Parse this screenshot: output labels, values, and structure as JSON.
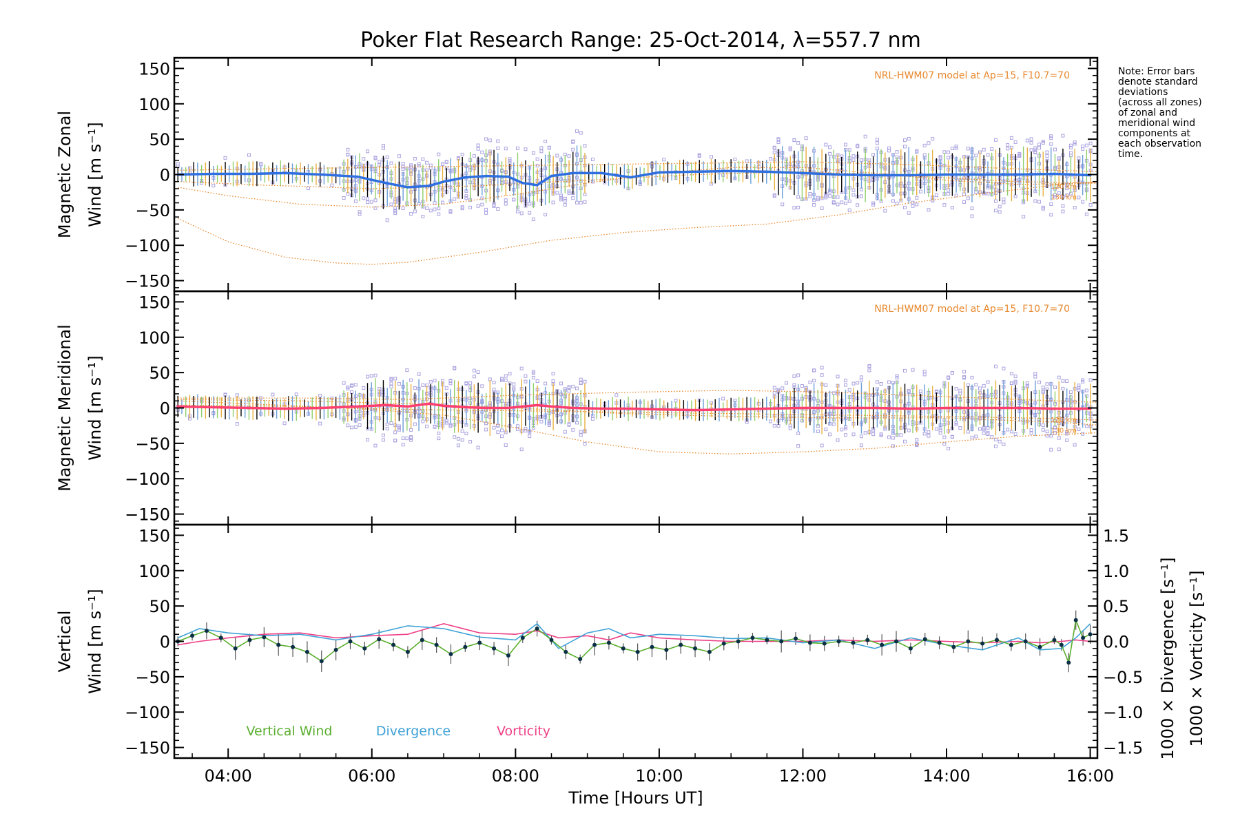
{
  "colors": {
    "zonal": "#2f6fe0",
    "meridional": "#ff3f6f",
    "vertical": "#5aae2e",
    "divergence": "#3fa2d6",
    "vorticity": "#ee3f86",
    "model": "#e8882e",
    "scatter": "#aaa3e0",
    "errorbar": "#000000",
    "dot": "#0b2f44"
  },
  "text": {
    "note_lines": [
      "Note: Error bars",
      "denote standard",
      "deviations",
      "(across all zones)",
      "of zonal and",
      "meridional wind",
      "components at",
      "each observation",
      "time."
    ],
    "model_label": "NRL-HWM07 model at Ap=15, F10.7=70",
    "alt_120": "120 km",
    "alt_130": "130 km"
  },
  "chart_data": [
    {
      "type": "line",
      "title": "Poker Flat Research Range: 25-Oct-2014, λ=557.7 nm",
      "ylabel_lines": [
        "Magnetic Zonal",
        "Wind [m s⁻¹]"
      ],
      "ylim": [
        -165,
        165
      ],
      "xlim": [
        3.25,
        16.1
      ],
      "yticks": [
        "150",
        "100",
        "50",
        "0",
        "−50",
        "−100",
        "−150"
      ],
      "ytick_values": [
        150,
        100,
        50,
        0,
        -50,
        -100,
        -150
      ],
      "series": [
        {
          "name": "Magnetic Zonal Wind",
          "x": [
            3.3,
            3.8,
            4.3,
            4.8,
            5.3,
            5.8,
            6.2,
            6.5,
            6.8,
            7.0,
            7.3,
            7.6,
            7.9,
            8.1,
            8.3,
            8.5,
            8.8,
            9.2,
            9.6,
            10.0,
            10.5,
            11.0,
            11.5,
            12.0,
            12.5,
            13.0,
            13.5,
            14.0,
            14.5,
            15.0,
            15.5,
            16.0
          ],
          "y": [
            0,
            1,
            1,
            2,
            0,
            -3,
            -12,
            -18,
            -16,
            -10,
            -4,
            -2,
            -3,
            -12,
            -15,
            -2,
            2,
            2,
            -4,
            3,
            4,
            5,
            4,
            2,
            0,
            -1,
            -1,
            0,
            0,
            0,
            1,
            -1
          ]
        }
      ],
      "model_curves": [
        {
          "x": [
            3.3,
            4.0,
            4.8,
            5.5,
            6.0,
            6.5,
            7.5,
            8.5,
            9.5,
            10.5,
            11.5,
            12.5,
            13.5,
            14.5,
            15.5,
            16.1
          ],
          "y": [
            -62,
            -95,
            -117,
            -125,
            -127,
            -124,
            -110,
            -93,
            -82,
            -75,
            -70,
            -57,
            -40,
            -27,
            -15,
            -10
          ]
        },
        {
          "x": [
            3.3,
            4.0,
            5.0,
            6.0,
            7.0,
            8.0,
            9.0,
            10.0,
            11.0,
            12.0,
            13.0,
            14.0,
            15.0,
            16.1
          ],
          "y": [
            -18,
            -30,
            -42,
            -46,
            -42,
            -28,
            -12,
            2,
            10,
            10,
            2,
            -8,
            -14,
            -12
          ]
        },
        {
          "x": [
            3.3,
            4.5,
            6.0,
            7.5,
            9.0,
            10.5,
            12.0,
            13.5,
            15.0,
            16.1
          ],
          "y": [
            -10,
            -15,
            -20,
            -16,
            -8,
            0,
            4,
            -2,
            -10,
            -12
          ]
        },
        {
          "x": [
            3.3,
            4.5,
            6.0,
            7.5,
            9.0,
            10.5,
            12.0,
            13.5,
            15.0,
            16.1
          ],
          "y": [
            6,
            8,
            10,
            12,
            14,
            16,
            18,
            14,
            8,
            4
          ]
        }
      ],
      "model_label_shown": true,
      "alt_labels_shown": true
    },
    {
      "type": "line",
      "ylabel_lines": [
        "Magnetic Meridional",
        "Wind [m s⁻¹]"
      ],
      "ylim": [
        -165,
        165
      ],
      "xlim": [
        3.25,
        16.1
      ],
      "yticks": [
        "150",
        "100",
        "50",
        "0",
        "−50",
        "−100",
        "−150"
      ],
      "ytick_values": [
        150,
        100,
        50,
        0,
        -50,
        -100,
        -150
      ],
      "series": [
        {
          "name": "Magnetic Meridional Wind",
          "x": [
            3.3,
            3.8,
            4.3,
            4.8,
            5.3,
            5.8,
            6.2,
            6.5,
            6.8,
            7.0,
            7.3,
            7.6,
            7.9,
            8.1,
            8.3,
            8.5,
            8.8,
            9.2,
            9.6,
            10.0,
            10.5,
            11.0,
            11.5,
            12.0,
            12.5,
            13.0,
            13.5,
            14.0,
            14.5,
            15.0,
            15.5,
            16.0
          ],
          "y": [
            2,
            1,
            0,
            -1,
            0,
            2,
            4,
            2,
            6,
            3,
            1,
            0,
            0,
            2,
            4,
            2,
            0,
            -1,
            -1,
            -2,
            -3,
            -2,
            -1,
            0,
            0,
            0,
            -1,
            0,
            0,
            0,
            -1,
            -1
          ]
        }
      ],
      "model_curves": [
        {
          "x": [
            3.3,
            4.5,
            6.0,
            7.0,
            8.0,
            9.0,
            10.0,
            11.0,
            12.0,
            13.0,
            14.0,
            15.0,
            16.1
          ],
          "y": [
            10,
            5,
            -2,
            -10,
            -28,
            -48,
            -62,
            -65,
            -62,
            -57,
            -48,
            -40,
            -35
          ]
        },
        {
          "x": [
            3.3,
            5.0,
            6.5,
            8.0,
            9.5,
            11.0,
            12.5,
            14.0,
            15.5,
            16.1
          ],
          "y": [
            12,
            10,
            6,
            0,
            -8,
            -12,
            -14,
            -14,
            -20,
            -24
          ]
        },
        {
          "x": [
            3.3,
            5.0,
            6.5,
            8.0,
            9.5,
            11.0,
            12.5,
            14.0,
            15.5,
            16.1
          ],
          "y": [
            4,
            2,
            -2,
            -4,
            -6,
            -8,
            -10,
            -12,
            -15,
            -17
          ]
        },
        {
          "x": [
            3.3,
            5.0,
            6.5,
            8.0,
            9.5,
            11.0,
            12.5,
            14.0,
            15.5,
            16.1
          ],
          "y": [
            14,
            14,
            12,
            18,
            22,
            25,
            22,
            16,
            10,
            8
          ]
        }
      ],
      "model_label_shown": true,
      "alt_labels_shown": true
    },
    {
      "type": "line",
      "ylabel_lines": [
        "Vertical",
        "Wind [m s⁻¹]"
      ],
      "ylim": [
        -165,
        165
      ],
      "xlim": [
        3.25,
        16.1
      ],
      "yticks": [
        "150",
        "100",
        "50",
        "0",
        "−50",
        "−100",
        "−150"
      ],
      "ytick_values": [
        150,
        100,
        50,
        0,
        -50,
        -100,
        -150
      ],
      "y2label_lines": [
        "1000 × Vorticity [s⁻¹]",
        "1000 × Divergence [s⁻¹]"
      ],
      "y2lim": [
        -1.65,
        1.65
      ],
      "y2ticks": [
        "1.5",
        "1.0",
        "0.5",
        "0.0",
        "−0.5",
        "−1.0",
        "−1.5"
      ],
      "y2tick_values": [
        1.5,
        1.0,
        0.5,
        0.0,
        -0.5,
        -1.0,
        -1.5
      ],
      "xticks": [
        "04:00",
        "06:00",
        "08:00",
        "10:00",
        "12:00",
        "14:00",
        "16:00"
      ],
      "xtick_values": [
        4,
        6,
        8,
        10,
        12,
        14,
        16
      ],
      "xlabel": "Time [Hours UT]",
      "legend": [
        "Vertical Wind",
        "Divergence",
        "Vorticity"
      ],
      "series": [
        {
          "name": "Vertical Wind",
          "x": [
            3.3,
            3.5,
            3.7,
            3.9,
            4.1,
            4.3,
            4.5,
            4.7,
            4.9,
            5.1,
            5.3,
            5.5,
            5.7,
            5.9,
            6.1,
            6.3,
            6.5,
            6.7,
            6.9,
            7.1,
            7.3,
            7.5,
            7.7,
            7.9,
            8.1,
            8.3,
            8.5,
            8.7,
            8.9,
            9.1,
            9.3,
            9.5,
            9.7,
            9.9,
            10.1,
            10.3,
            10.5,
            10.7,
            10.9,
            11.1,
            11.3,
            11.5,
            11.7,
            11.9,
            12.1,
            12.3,
            12.5,
            12.7,
            12.9,
            13.1,
            13.3,
            13.5,
            13.7,
            13.9,
            14.1,
            14.3,
            14.5,
            14.7,
            14.9,
            15.1,
            15.3,
            15.5,
            15.6,
            15.7,
            15.8,
            15.9,
            16.0
          ],
          "y": [
            0,
            8,
            15,
            5,
            -10,
            2,
            6,
            -5,
            -8,
            -15,
            -28,
            -12,
            0,
            -10,
            3,
            -5,
            -15,
            2,
            -5,
            -18,
            -8,
            -2,
            -10,
            -20,
            5,
            18,
            2,
            -15,
            -25,
            -5,
            -2,
            -10,
            -15,
            -8,
            -12,
            -5,
            -10,
            -15,
            -3,
            0,
            5,
            2,
            0,
            4,
            -2,
            -3,
            0,
            -2,
            2,
            -5,
            0,
            -10,
            3,
            -2,
            -8,
            0,
            -3,
            2,
            -5,
            0,
            -8,
            2,
            -5,
            -30,
            30,
            5,
            10
          ]
        },
        {
          "name": "Divergence",
          "x": [
            3.3,
            3.6,
            4.0,
            4.5,
            5.0,
            5.5,
            6.0,
            6.5,
            7.0,
            7.5,
            8.0,
            8.3,
            8.6,
            9.0,
            9.3,
            9.6,
            10.0,
            10.5,
            11.0,
            11.5,
            12.0,
            12.5,
            13.0,
            13.5,
            14.0,
            14.5,
            15.0,
            15.3,
            15.6,
            15.8,
            16.0
          ],
          "y": [
            0.05,
            0.18,
            0.12,
            0.08,
            0.1,
            0.02,
            0.1,
            0.22,
            0.18,
            0.06,
            0.02,
            0.25,
            -0.1,
            0.12,
            0.18,
            0.05,
            0.1,
            0.08,
            0.04,
            0.05,
            -0.02,
            0.02,
            -0.1,
            0.05,
            -0.05,
            -0.12,
            0.05,
            -0.12,
            -0.1,
            0.05,
            0.25
          ]
        },
        {
          "name": "Vorticity",
          "x": [
            3.3,
            3.6,
            4.0,
            4.5,
            5.0,
            5.5,
            6.0,
            6.5,
            7.0,
            7.5,
            8.0,
            8.3,
            8.6,
            9.0,
            9.3,
            9.6,
            10.0,
            10.5,
            11.0,
            11.5,
            12.0,
            12.5,
            13.0,
            13.5,
            14.0,
            14.5,
            15.0,
            15.3,
            15.6,
            15.8,
            16.0
          ],
          "y": [
            -0.05,
            0.0,
            0.05,
            0.1,
            0.12,
            0.05,
            0.08,
            0.1,
            0.25,
            0.12,
            0.1,
            0.15,
            0.05,
            0.08,
            0.02,
            0.12,
            0.05,
            0.02,
            0.0,
            0.0,
            0.0,
            0.02,
            0.0,
            0.02,
            0.0,
            -0.02,
            0.0,
            -0.02,
            0.0,
            0.02,
            0.0
          ]
        }
      ]
    }
  ]
}
